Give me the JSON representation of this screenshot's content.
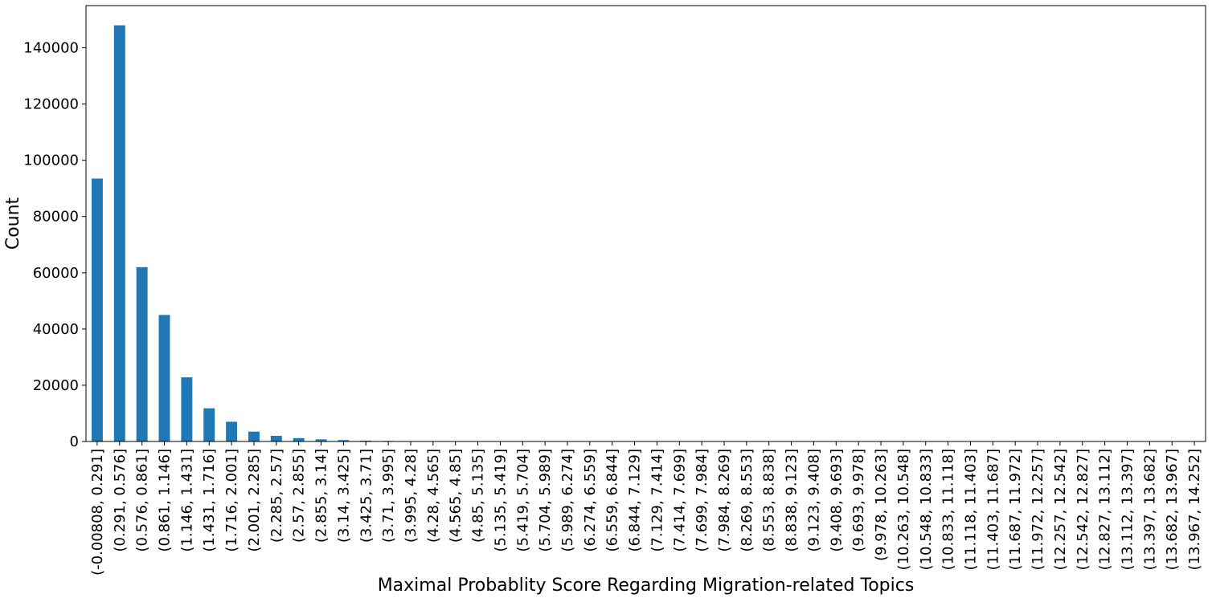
{
  "chart_data": {
    "type": "bar",
    "title": "",
    "xlabel": "Maximal Probablity Score Regarding Migration-related Topics",
    "ylabel": "Count",
    "ylim": [
      0,
      155000
    ],
    "yticks": [
      0,
      20000,
      40000,
      60000,
      80000,
      100000,
      120000,
      140000
    ],
    "ytick_labels": [
      "0",
      "20000",
      "40000",
      "60000",
      "80000",
      "100000",
      "120000",
      "140000"
    ],
    "bar_color": "#1f77b4",
    "grid": false,
    "legend": "none",
    "categories": [
      "(-0.00808, 0.291]",
      "(0.291, 0.576]",
      "(0.576, 0.861]",
      "(0.861, 1.146]",
      "(1.146, 1.431]",
      "(1.431, 1.716]",
      "(1.716, 2.001]",
      "(2.001, 2.285]",
      "(2.285, 2.57]",
      "(2.57, 2.855]",
      "(2.855, 3.14]",
      "(3.14, 3.425]",
      "(3.425, 3.71]",
      "(3.71, 3.995]",
      "(3.995, 4.28]",
      "(4.28, 4.565]",
      "(4.565, 4.85]",
      "(4.85, 5.135]",
      "(5.135, 5.419]",
      "(5.419, 5.704]",
      "(5.704, 5.989]",
      "(5.989, 6.274]",
      "(6.274, 6.559]",
      "(6.559, 6.844]",
      "(6.844, 7.129]",
      "(7.129, 7.414]",
      "(7.414, 7.699]",
      "(7.699, 7.984]",
      "(7.984, 8.269]",
      "(8.269, 8.553]",
      "(8.553, 8.838]",
      "(8.838, 9.123]",
      "(9.123, 9.408]",
      "(9.408, 9.693]",
      "(9.693, 9.978]",
      "(9.978, 10.263]",
      "(10.263, 10.548]",
      "(10.548, 10.833]",
      "(10.833, 11.118]",
      "(11.118, 11.403]",
      "(11.403, 11.687]",
      "(11.687, 11.972]",
      "(11.972, 12.257]",
      "(12.257, 12.542]",
      "(12.542, 12.827]",
      "(12.827, 13.112]",
      "(13.112, 13.397]",
      "(13.397, 13.682]",
      "(13.682, 13.967]",
      "(13.967, 14.252]"
    ],
    "values": [
      93500,
      148000,
      62000,
      45000,
      22800,
      11800,
      7000,
      3500,
      2000,
      1200,
      750,
      500,
      300,
      200,
      100,
      80,
      50,
      40,
      30,
      20,
      15,
      10,
      8,
      6,
      5,
      4,
      3,
      3,
      2,
      2,
      2,
      1,
      1,
      1,
      1,
      1,
      1,
      1,
      1,
      1,
      1,
      1,
      1,
      1,
      1,
      1,
      1,
      1,
      1,
      1
    ]
  }
}
